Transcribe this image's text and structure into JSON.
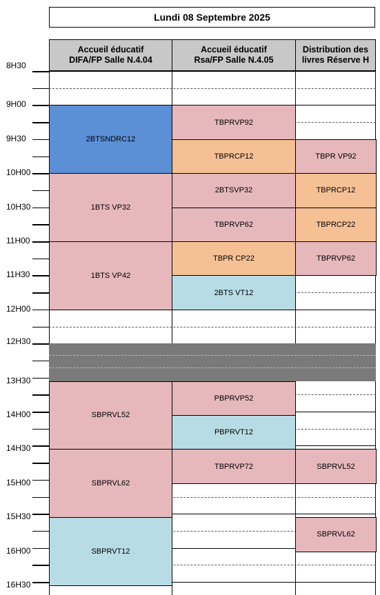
{
  "header": {
    "date": "Lundi 08 Septembre 2025"
  },
  "columns": [
    {
      "line1": "Accueil éducatif",
      "line2": "DIFA/FP Salle N.4.04"
    },
    {
      "line1": "Accueil éducatif",
      "line2": "Rsa/FP Salle N.4.05"
    },
    {
      "line1": "Distribution des",
      "line2": "livres Réserve H"
    }
  ],
  "times": [
    "8H30",
    "9H00",
    "9H30",
    "10H00",
    "10H30",
    "11H00",
    "11H30",
    "12H00",
    "12H30",
    "13H30",
    "14H00",
    "14H30",
    "15H00",
    "15H30",
    "16H00",
    "16H30"
  ],
  "blocks": [
    {
      "col": 0,
      "label": "2BTSNDRC12",
      "color": "#5b8fd6"
    },
    {
      "col": 1,
      "label": "TBPRVP92",
      "color": "#e6b8bc"
    },
    {
      "col": 1,
      "label": "TBPRCP12",
      "color": "#f6c095"
    },
    {
      "col": 2,
      "label": "TBPR VP92",
      "color": "#e6b8bc"
    },
    {
      "col": 0,
      "label": "1BTS VP32",
      "color": "#e6b8bc"
    },
    {
      "col": 1,
      "label": "2BTSVP32",
      "color": "#e6b8bc"
    },
    {
      "col": 2,
      "label": "TBPRCP12",
      "color": "#f6c095"
    },
    {
      "col": 1,
      "label": "TBPRVP62",
      "color": "#e6b8bc"
    },
    {
      "col": 2,
      "label": "TBPRCP22",
      "color": "#f6c095"
    },
    {
      "col": 0,
      "label": "1BTS VP42",
      "color": "#e6b8bc"
    },
    {
      "col": 1,
      "label": "TBPR CP22",
      "color": "#f6c095"
    },
    {
      "col": 2,
      "label": "TBPRVP62",
      "color": "#e6b8bc"
    },
    {
      "col": 1,
      "label": "2BTS VT12",
      "color": "#b8dce5"
    },
    {
      "col": 0,
      "label": "SBPRVL52",
      "color": "#e6b8bc"
    },
    {
      "col": 1,
      "label": "PBPRVP52",
      "color": "#e6b8bc"
    },
    {
      "col": 1,
      "label": "PBPRVT12",
      "color": "#b8dce5"
    },
    {
      "col": 0,
      "label": "SBPRVL62",
      "color": "#e6b8bc"
    },
    {
      "col": 1,
      "label": "TBPRVP72",
      "color": "#e6b8bc"
    },
    {
      "col": 2,
      "label": "SBPRVL52",
      "color": "#e6b8bc"
    },
    {
      "col": 0,
      "label": "SBPRVT12",
      "color": "#b8dce5"
    },
    {
      "col": 2,
      "label": "SBPRVL62",
      "color": "#e6b8bc"
    }
  ]
}
